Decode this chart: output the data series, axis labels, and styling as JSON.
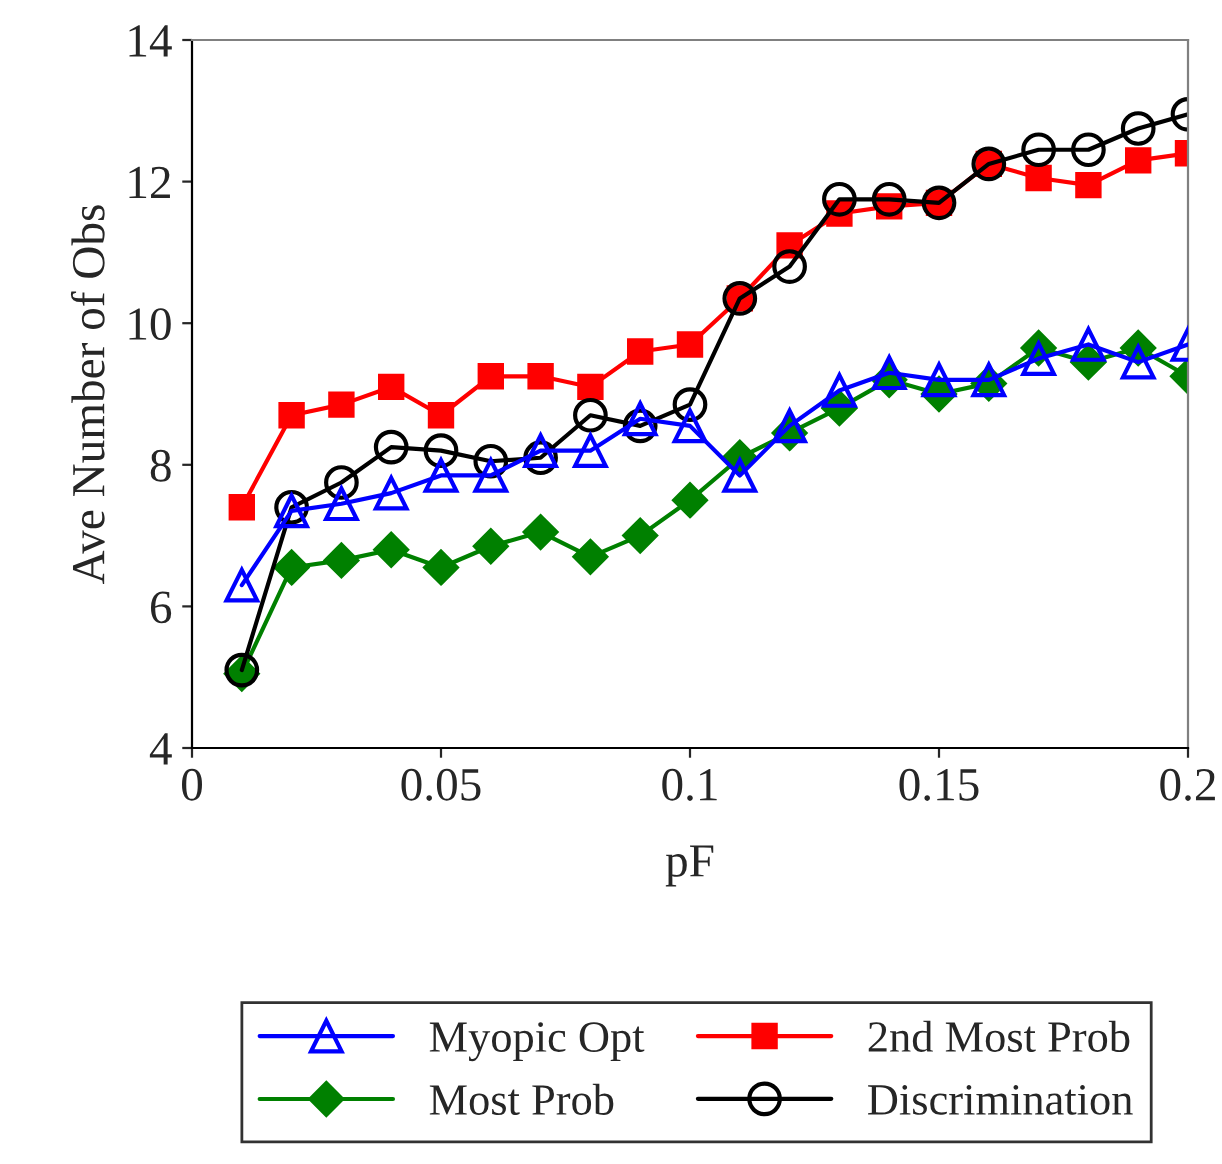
{
  "chart_data": {
    "type": "line",
    "xlabel": "pF",
    "ylabel": "Ave Number of Obs",
    "x": [
      0.01,
      0.02,
      0.03,
      0.04,
      0.05,
      0.06,
      0.07,
      0.08,
      0.09,
      0.1,
      0.11,
      0.12,
      0.13,
      0.14,
      0.15,
      0.16,
      0.17,
      0.18,
      0.19,
      0.2
    ],
    "xlim": [
      0,
      0.2
    ],
    "xticks": [
      {
        "value": 0,
        "label": "0"
      },
      0.05,
      0.1,
      0.15,
      0.2
    ],
    "ylim": [
      4,
      14
    ],
    "yticks": [
      4,
      6,
      8,
      10,
      12,
      14
    ],
    "grid": false,
    "legend": "bottom",
    "line_style": "solid",
    "series": [
      {
        "name": "Myopic Opt",
        "color": "#0000ff",
        "marker": "triangle",
        "values": [
          6.3,
          7.35,
          7.45,
          7.6,
          7.85,
          7.85,
          8.2,
          8.2,
          8.65,
          8.55,
          7.85,
          8.55,
          9.05,
          9.3,
          9.2,
          9.2,
          9.5,
          9.7,
          9.45,
          9.7
        ]
      },
      {
        "name": "Most Prob",
        "color": "#008000",
        "marker": "diamond",
        "values": [
          5.05,
          6.55,
          6.65,
          6.8,
          6.55,
          6.85,
          7.05,
          6.7,
          7.0,
          7.5,
          8.1,
          8.45,
          8.8,
          9.2,
          9.0,
          9.15,
          9.65,
          9.45,
          9.65,
          9.25
        ]
      },
      {
        "name": "2nd Most Prob",
        "color": "#ff0000",
        "marker": "square",
        "values": [
          7.4,
          8.7,
          8.85,
          9.1,
          8.7,
          9.25,
          9.25,
          9.1,
          9.6,
          9.7,
          10.35,
          11.1,
          11.55,
          11.65,
          11.7,
          12.25,
          12.05,
          11.95,
          12.3,
          12.4
        ]
      },
      {
        "name": "Discrimination",
        "color": "#000000",
        "marker": "circle",
        "values": [
          5.1,
          7.4,
          7.75,
          8.25,
          8.2,
          8.05,
          8.1,
          8.7,
          8.55,
          8.85,
          10.35,
          10.8,
          11.75,
          11.75,
          11.7,
          12.25,
          12.45,
          12.45,
          12.75,
          12.95
        ]
      }
    ]
  }
}
